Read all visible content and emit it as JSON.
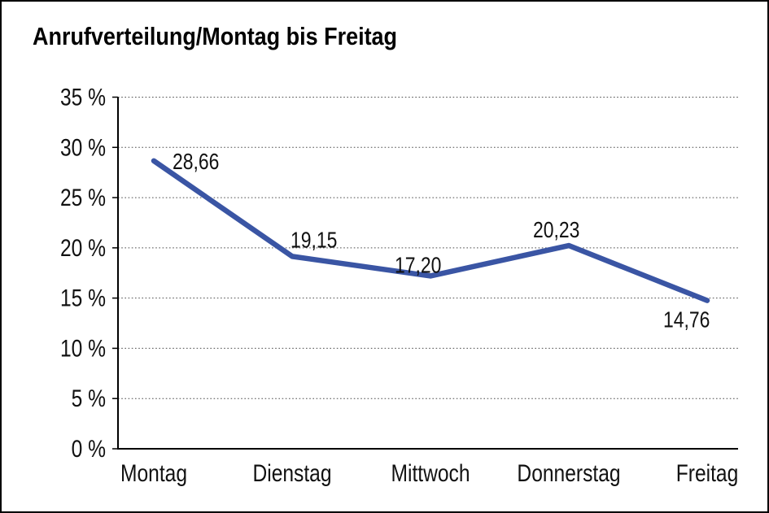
{
  "window": {
    "background": "#FFFFFF",
    "border_color": "#000000"
  },
  "chart_data": {
    "type": "line",
    "title": "Anrufverteilung/Montag bis Freitag",
    "categories": [
      "Montag",
      "Dienstag",
      "Mittwoch",
      "Donnerstag",
      "Freitag"
    ],
    "series": [
      {
        "name": "Anrufverteilung",
        "values": [
          28.66,
          19.15,
          17.2,
          20.23,
          14.76
        ]
      }
    ],
    "data_labels": [
      "28,66",
      "19,15",
      "17,20",
      "20,23",
      "14,76"
    ],
    "y_tick_labels": [
      "0 %",
      "5 %",
      "10 %",
      "15 %",
      "20 %",
      "25 %",
      "30 %",
      "35 %"
    ],
    "ylim": [
      0,
      35
    ],
    "y_step": 5,
    "xlabel": "",
    "ylabel": "",
    "legend": "none",
    "grid": "horizontal-dotted",
    "line_color": "#3A55A4",
    "axis_color": "#000000",
    "grid_color": "#4d4d4d",
    "text_color": "#111111"
  }
}
